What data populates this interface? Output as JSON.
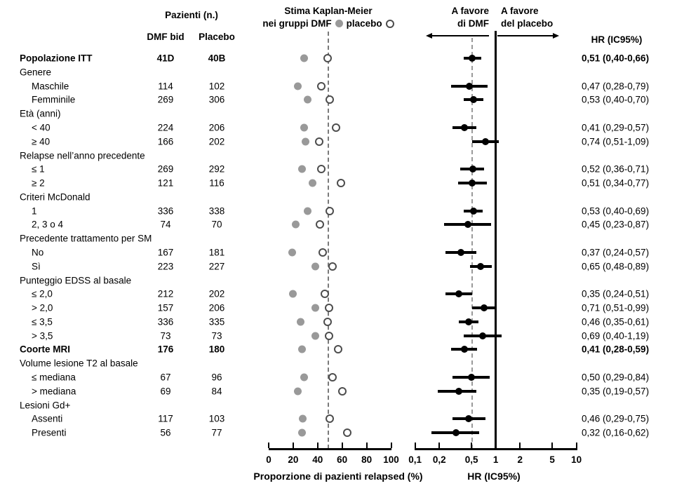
{
  "header": {
    "patients_group_title": "Pazienti (n.)",
    "dmf_col": "DMF bid",
    "placebo_col": "Placebo",
    "km_title_1": "Stima Kaplan-Meier",
    "km_title_2_prefix": "nei gruppi DMF",
    "km_title_2_placebo": "placebo",
    "favor_dmf_1": "A favore",
    "favor_dmf_2": "di DMF",
    "favor_placebo_1": "A favore",
    "favor_placebo_2": "del placebo",
    "hr_col_header": "HR (IC95%)"
  },
  "colors": {
    "dmf_marker": "#999999",
    "placebo_marker_outline": "#4d4d4d",
    "placebo_marker_fill": "#ffffff",
    "forest_marker": "#000000",
    "km_dashed_line": "#7a7a7a",
    "hr_dashed_line": "#9a9a9a",
    "axis": "#000000"
  },
  "chart_data": {
    "type": "scatter",
    "subtype": "forest-plot-with-kaplan-meier-dotplot",
    "km_axis": {
      "label": "Proporzione di pazienti relapsed (%)",
      "ticks": [
        0,
        20,
        40,
        60,
        80,
        100
      ],
      "range": [
        0,
        100
      ],
      "dashed_reference_pct": 48.7
    },
    "hr_axis": {
      "label": "HR (IC95%)",
      "tick_labels": [
        "0,1",
        "0,2",
        "0,5",
        "1",
        "2",
        "5",
        "10"
      ],
      "tick_values": [
        0.1,
        0.2,
        0.5,
        1,
        2,
        5,
        10
      ],
      "scale": "log",
      "range": [
        0.1,
        10
      ],
      "solid_reference": 1,
      "dashed_reference": 0.51
    },
    "rows": [
      {
        "kind": "data",
        "label": "Popolazione ITT",
        "bold": true,
        "indent": 0,
        "dmf_n": "41D",
        "placebo_n": "40B",
        "km_dmf": 29,
        "km_placebo": 48,
        "hr": 0.51,
        "lo": 0.4,
        "hi": 0.66,
        "hr_text": "0,51 (0,40-0,66)"
      },
      {
        "kind": "section",
        "label": "Genere"
      },
      {
        "kind": "data",
        "label": "Maschile",
        "bold": false,
        "indent": 1,
        "dmf_n": "114",
        "placebo_n": "102",
        "km_dmf": 24,
        "km_placebo": 43,
        "hr": 0.47,
        "lo": 0.28,
        "hi": 0.79,
        "hr_text": "0,47 (0,28-0,79)"
      },
      {
        "kind": "data",
        "label": "Femminile",
        "bold": false,
        "indent": 1,
        "dmf_n": "269",
        "placebo_n": "306",
        "km_dmf": 32,
        "km_placebo": 50,
        "hr": 0.53,
        "lo": 0.4,
        "hi": 0.7,
        "hr_text": "0,53 (0,40-0,70)"
      },
      {
        "kind": "section",
        "label": "Età (anni)"
      },
      {
        "kind": "data",
        "label": "< 40",
        "bold": false,
        "indent": 1,
        "dmf_n": "224",
        "placebo_n": "206",
        "km_dmf": 29,
        "km_placebo": 55,
        "hr": 0.41,
        "lo": 0.29,
        "hi": 0.57,
        "hr_text": "0,41 (0,29-0,57)"
      },
      {
        "kind": "data",
        "label": "≥ 40",
        "bold": false,
        "indent": 1,
        "dmf_n": "166",
        "placebo_n": "202",
        "km_dmf": 30,
        "km_placebo": 41,
        "hr": 0.74,
        "lo": 0.51,
        "hi": 1.09,
        "hr_text": "0,74 (0,51-1,09)"
      },
      {
        "kind": "section",
        "label": "Relapse nell’anno precedente"
      },
      {
        "kind": "data",
        "label": "≤ 1",
        "bold": false,
        "indent": 1,
        "dmf_n": "269",
        "placebo_n": "292",
        "km_dmf": 27,
        "km_placebo": 43,
        "hr": 0.52,
        "lo": 0.36,
        "hi": 0.71,
        "hr_text": "0,52 (0,36-0,71)"
      },
      {
        "kind": "data",
        "label": "≥ 2",
        "bold": false,
        "indent": 1,
        "dmf_n": "121",
        "placebo_n": "116",
        "km_dmf": 36,
        "km_placebo": 59,
        "hr": 0.51,
        "lo": 0.34,
        "hi": 0.77,
        "hr_text": "0,51 (0,34-0,77)"
      },
      {
        "kind": "section",
        "label": "Criteri McDonald"
      },
      {
        "kind": "data",
        "label": "1",
        "bold": false,
        "indent": 1,
        "dmf_n": "336",
        "placebo_n": "338",
        "km_dmf": 32,
        "km_placebo": 50,
        "hr": 0.53,
        "lo": 0.4,
        "hi": 0.69,
        "hr_text": "0,53 (0,40-0,69)"
      },
      {
        "kind": "data",
        "label": "2, 3 o 4",
        "bold": false,
        "indent": 1,
        "dmf_n": "74",
        "placebo_n": "70",
        "km_dmf": 22,
        "km_placebo": 42,
        "hr": 0.45,
        "lo": 0.23,
        "hi": 0.87,
        "hr_text": "0,45 (0,23-0,87)"
      },
      {
        "kind": "section",
        "label": "Precedente trattamento per SM"
      },
      {
        "kind": "data",
        "label": "No",
        "bold": false,
        "indent": 1,
        "dmf_n": "167",
        "placebo_n": "181",
        "km_dmf": 19,
        "km_placebo": 44,
        "hr": 0.37,
        "lo": 0.24,
        "hi": 0.57,
        "hr_text": "0,37 (0,24-0,57)"
      },
      {
        "kind": "data",
        "label": "Sì",
        "bold": false,
        "indent": 1,
        "dmf_n": "223",
        "placebo_n": "227",
        "km_dmf": 38,
        "km_placebo": 52,
        "hr": 0.65,
        "lo": 0.48,
        "hi": 0.89,
        "hr_text": "0,65 (0,48-0,89)"
      },
      {
        "kind": "section",
        "label": "Punteggio EDSS al basale"
      },
      {
        "kind": "data",
        "label": "≤ 2,0",
        "bold": false,
        "indent": 1,
        "dmf_n": "212",
        "placebo_n": "202",
        "km_dmf": 20,
        "km_placebo": 46,
        "hr": 0.35,
        "lo": 0.24,
        "hi": 0.51,
        "hr_text": "0,35 (0,24-0,51)"
      },
      {
        "kind": "data",
        "label": "> 2,0",
        "bold": false,
        "indent": 1,
        "dmf_n": "157",
        "placebo_n": "206",
        "km_dmf": 38,
        "km_placebo": 49,
        "hr": 0.71,
        "lo": 0.51,
        "hi": 0.99,
        "hr_text": "0,71 (0,51-0,99)"
      },
      {
        "kind": "data",
        "label": "≤ 3,5",
        "bold": false,
        "indent": 1,
        "dmf_n": "336",
        "placebo_n": "335",
        "km_dmf": 26,
        "km_placebo": 48,
        "hr": 0.46,
        "lo": 0.35,
        "hi": 0.61,
        "hr_text": "0,46 (0,35-0,61)"
      },
      {
        "kind": "data",
        "label": "> 3,5",
        "bold": false,
        "indent": 1,
        "dmf_n": "73",
        "placebo_n": "73",
        "km_dmf": 38,
        "km_placebo": 49,
        "hr": 0.69,
        "lo": 0.4,
        "hi": 1.19,
        "hr_text": "0,69 (0,40-1,19)"
      },
      {
        "kind": "data",
        "label": "Coorte MRI",
        "bold": true,
        "indent": 0,
        "dmf_n": "176",
        "placebo_n": "180",
        "km_dmf": 27,
        "km_placebo": 57,
        "hr": 0.41,
        "lo": 0.28,
        "hi": 0.59,
        "hr_text": "0,41 (0,28-0,59)"
      },
      {
        "kind": "section",
        "label": "Volume lesione T2 al basale"
      },
      {
        "kind": "data",
        "label": "≤ mediana",
        "bold": false,
        "indent": 1,
        "dmf_n": "67",
        "placebo_n": "96",
        "km_dmf": 29,
        "km_placebo": 52,
        "hr": 0.5,
        "lo": 0.29,
        "hi": 0.84,
        "hr_text": "0,50 (0,29-0,84)"
      },
      {
        "kind": "data",
        "label": "> mediana",
        "bold": false,
        "indent": 1,
        "dmf_n": "69",
        "placebo_n": "84",
        "km_dmf": 24,
        "km_placebo": 60,
        "hr": 0.35,
        "lo": 0.19,
        "hi": 0.57,
        "hr_text": "0,35 (0,19-0,57)"
      },
      {
        "kind": "section",
        "label": "Lesioni Gd+"
      },
      {
        "kind": "data",
        "label": "Assenti",
        "bold": false,
        "indent": 1,
        "dmf_n": "117",
        "placebo_n": "103",
        "km_dmf": 28,
        "km_placebo": 50,
        "hr": 0.46,
        "lo": 0.29,
        "hi": 0.75,
        "hr_text": "0,46 (0,29-0,75)"
      },
      {
        "kind": "data",
        "label": "Presenti",
        "bold": false,
        "indent": 1,
        "dmf_n": "56",
        "placebo_n": "77",
        "km_dmf": 27,
        "km_placebo": 64,
        "hr": 0.32,
        "lo": 0.16,
        "hi": 0.62,
        "hr_text": "0,32 (0,16-0,62)"
      }
    ]
  }
}
